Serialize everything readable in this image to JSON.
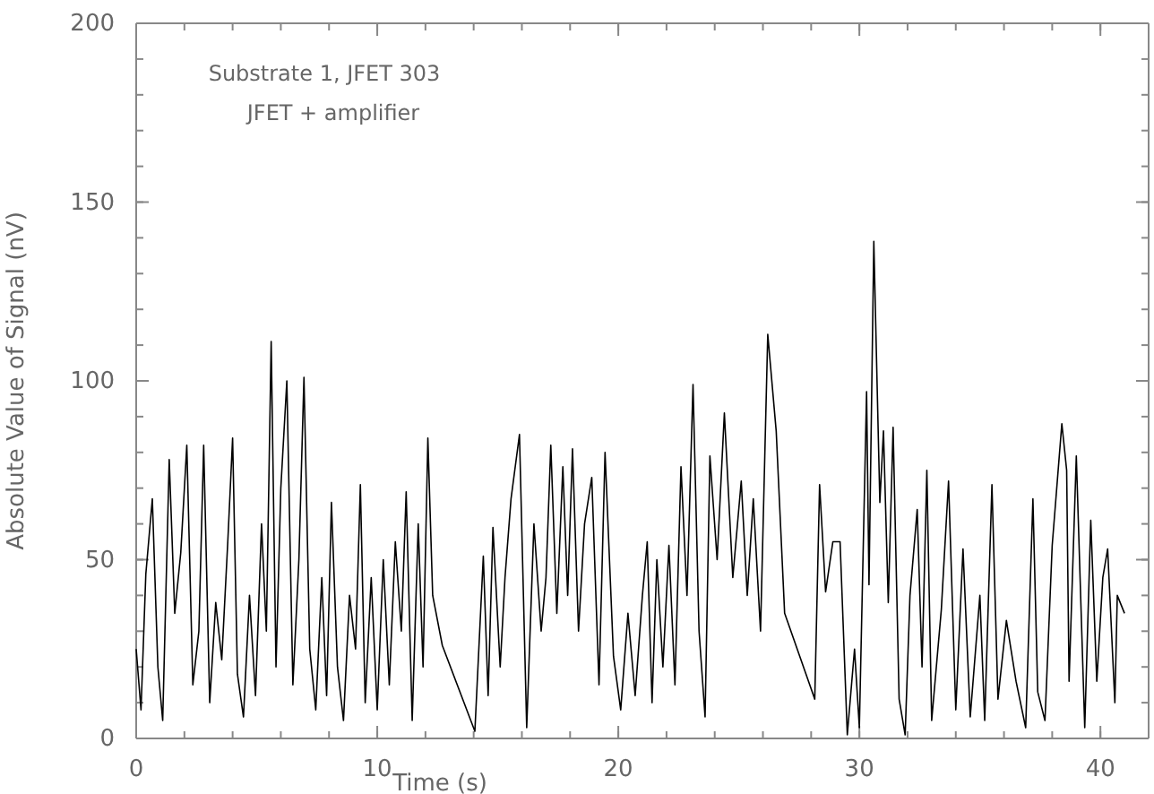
{
  "chart_data": {
    "type": "line",
    "xlabel": "Time (s)",
    "ylabel": "Absolute Value of Signal (nV)",
    "annotations": [
      "Substrate 1, JFET 303",
      "JFET + amplifier"
    ],
    "xlim": [
      0,
      42
    ],
    "xticks": [
      0,
      10,
      20,
      30,
      40
    ],
    "ylim": [
      0,
      200
    ],
    "yticks": [
      0,
      50,
      100,
      150,
      200
    ],
    "grid": false,
    "series": [
      {
        "color": "#000000",
        "x": [
          0,
          0.2,
          0.4,
          0.67,
          0.9,
          1.1,
          1.37,
          1.6,
          1.85,
          2.1,
          2.35,
          2.6,
          2.8,
          3.05,
          3.3,
          3.55,
          3.8,
          4.0,
          4.2,
          4.45,
          4.7,
          4.95,
          5.2,
          5.4,
          5.6,
          5.8,
          6.0,
          6.25,
          6.5,
          6.75,
          6.96,
          7.2,
          7.45,
          7.7,
          7.9,
          8.1,
          8.35,
          8.6,
          8.85,
          9.1,
          9.3,
          9.5,
          9.75,
          10.0,
          10.25,
          10.5,
          10.75,
          11.0,
          11.2,
          11.45,
          11.7,
          11.9,
          12.1,
          12.3,
          12.7,
          14.05,
          14.4,
          14.6,
          14.8,
          15.1,
          15.3,
          15.55,
          15.9,
          16.2,
          16.5,
          16.8,
          17.0,
          17.2,
          17.45,
          17.7,
          17.9,
          18.1,
          18.35,
          18.6,
          18.9,
          19.2,
          19.45,
          19.8,
          20.1,
          20.4,
          20.7,
          21.0,
          21.2,
          21.4,
          21.6,
          21.85,
          22.1,
          22.35,
          22.6,
          22.85,
          23.1,
          23.35,
          23.6,
          23.8,
          24.1,
          24.4,
          24.75,
          25.1,
          25.35,
          25.6,
          25.9,
          26.2,
          26.55,
          26.9,
          28.15,
          28.35,
          28.6,
          28.9,
          29.2,
          29.5,
          29.8,
          30.0,
          30.3,
          30.4,
          30.6,
          30.85,
          31.0,
          31.2,
          31.4,
          31.65,
          31.9,
          32.1,
          32.4,
          32.6,
          32.8,
          33.0,
          33.4,
          33.7,
          34.0,
          34.3,
          34.6,
          35.0,
          35.2,
          35.5,
          35.75,
          36.1,
          36.5,
          36.9,
          37.2,
          37.4,
          37.7,
          38.0,
          38.4,
          38.6,
          38.7,
          39.0,
          39.35,
          39.6,
          39.85,
          40.1,
          40.3,
          40.6,
          40.7,
          41.0
        ],
        "values": [
          25,
          8,
          46,
          67,
          20,
          5,
          78,
          35,
          52,
          82,
          15,
          30,
          82,
          10,
          38,
          22,
          55,
          84,
          18,
          6,
          40,
          12,
          60,
          30,
          111,
          20,
          70,
          100,
          15,
          50,
          101,
          25,
          8,
          45,
          12,
          66,
          20,
          5,
          40,
          25,
          71,
          10,
          45,
          8,
          50,
          15,
          55,
          30,
          69,
          5,
          60,
          20,
          84,
          40,
          26,
          2,
          51,
          12,
          59,
          20,
          45,
          67,
          85,
          3,
          60,
          30,
          45,
          82,
          35,
          76,
          40,
          81,
          30,
          60,
          73,
          15,
          80,
          23,
          8,
          35,
          12,
          40,
          55,
          10,
          50,
          20,
          54,
          15,
          76,
          40,
          99,
          30,
          6,
          79,
          50,
          91,
          45,
          72,
          40,
          67,
          30,
          113,
          86,
          35,
          11,
          71,
          41,
          55,
          55,
          1,
          25,
          3,
          97,
          43,
          139,
          66,
          86,
          38,
          87,
          11,
          1,
          40,
          64,
          20,
          75,
          5,
          36,
          72,
          8,
          53,
          6,
          40,
          5,
          71,
          11,
          33,
          16,
          3,
          67,
          13,
          5,
          54,
          88,
          75,
          16,
          79,
          3,
          61,
          16,
          45,
          53,
          10,
          40,
          35
        ]
      }
    ]
  }
}
